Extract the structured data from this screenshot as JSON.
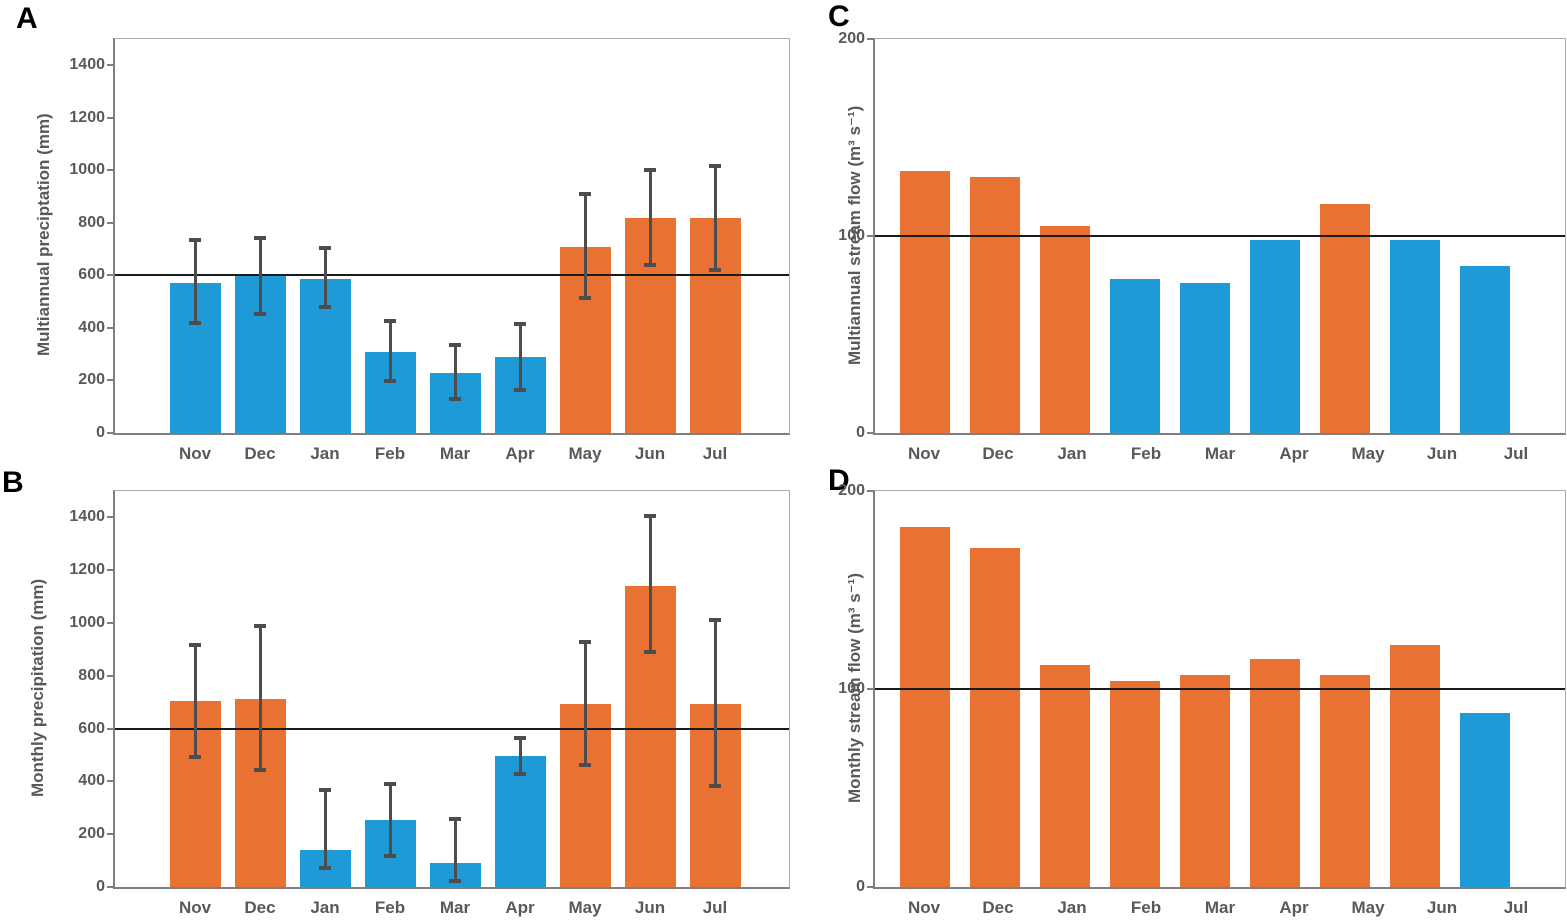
{
  "figure": {
    "background": "#ffffff"
  },
  "colors": {
    "orange": "#E97132",
    "blue": "#1E9BD7",
    "error_bar": "#4D4D4D",
    "reference_line": "#1A1A1A",
    "axis": "#7F7F7F",
    "plot_border": "#ABABAB",
    "label_text": "#595959",
    "panel_letter": "#000000"
  },
  "chart_data": [
    {
      "panel": "A",
      "type": "bar",
      "title": "",
      "ylabel": "Multiannual preciptation (mm)",
      "xlabel": "",
      "categories": [
        "Nov",
        "Dec",
        "Jan",
        "Feb",
        "Mar",
        "Apr",
        "May",
        "Jun",
        "Jul"
      ],
      "values": [
        570,
        598,
        585,
        310,
        230,
        290,
        710,
        820,
        820
      ],
      "errors_low": [
        415,
        450,
        475,
        195,
        125,
        160,
        510,
        635,
        615
      ],
      "errors_high": [
        740,
        745,
        710,
        430,
        340,
        420,
        915,
        1005,
        1020
      ],
      "bar_colors": [
        "blue",
        "blue",
        "blue",
        "blue",
        "blue",
        "blue",
        "orange",
        "orange",
        "orange"
      ],
      "yticks": [
        0,
        200,
        400,
        600,
        800,
        1000,
        1200,
        1400
      ],
      "ylim": [
        0,
        1500
      ],
      "refline": 600,
      "grid": false,
      "legend": null
    },
    {
      "panel": "B",
      "type": "bar",
      "title": "",
      "ylabel": "Monthly precipitation (mm)",
      "xlabel": "",
      "categories": [
        "Nov",
        "Dec",
        "Jan",
        "Feb",
        "Mar",
        "Apr",
        "May",
        "Jun",
        "Jul"
      ],
      "values": [
        703,
        712,
        140,
        253,
        92,
        497,
        693,
        1140,
        692
      ],
      "errors_low": [
        487,
        440,
        70,
        113,
        20,
        423,
        460,
        885,
        378
      ],
      "errors_high": [
        920,
        993,
        373,
        395,
        260,
        570,
        930,
        1408,
        1017
      ],
      "bar_colors": [
        "orange",
        "orange",
        "blue",
        "blue",
        "blue",
        "blue",
        "orange",
        "orange",
        "orange"
      ],
      "yticks": [
        0,
        200,
        400,
        600,
        800,
        1000,
        1200,
        1400
      ],
      "ylim": [
        0,
        1500
      ],
      "refline": 600,
      "grid": false,
      "legend": null
    },
    {
      "panel": "C",
      "type": "bar",
      "title": "",
      "ylabel": "Multiannual stream flow (m³ s⁻¹)",
      "xlabel": "",
      "categories": [
        "Nov",
        "Dec",
        "Jan",
        "Feb",
        "Mar",
        "Apr",
        "May",
        "Jun",
        "Jul"
      ],
      "values": [
        133,
        130,
        105,
        78,
        76,
        98,
        116,
        98,
        85
      ],
      "errors_low": null,
      "errors_high": null,
      "bar_colors": [
        "orange",
        "orange",
        "orange",
        "blue",
        "blue",
        "blue",
        "orange",
        "blue",
        "blue"
      ],
      "yticks": [
        0,
        100,
        200
      ],
      "ylim": [
        0,
        200
      ],
      "refline": 100,
      "grid": false,
      "legend": null
    },
    {
      "panel": "D",
      "type": "bar",
      "title": "",
      "ylabel": "Monthly stream flow (m³ s⁻¹)",
      "xlabel": "",
      "categories": [
        "Nov",
        "Dec",
        "Jan",
        "Feb",
        "Mar",
        "Apr",
        "May",
        "Jun",
        "Jul"
      ],
      "values": [
        182,
        171,
        112,
        104,
        107,
        115,
        107,
        122,
        88
      ],
      "errors_low": null,
      "errors_high": null,
      "bar_colors": [
        "orange",
        "orange",
        "orange",
        "orange",
        "orange",
        "orange",
        "orange",
        "orange",
        "blue"
      ],
      "yticks": [
        0,
        100,
        200
      ],
      "ylim": [
        0,
        200
      ],
      "refline": 100,
      "grid": false,
      "legend": null
    }
  ]
}
